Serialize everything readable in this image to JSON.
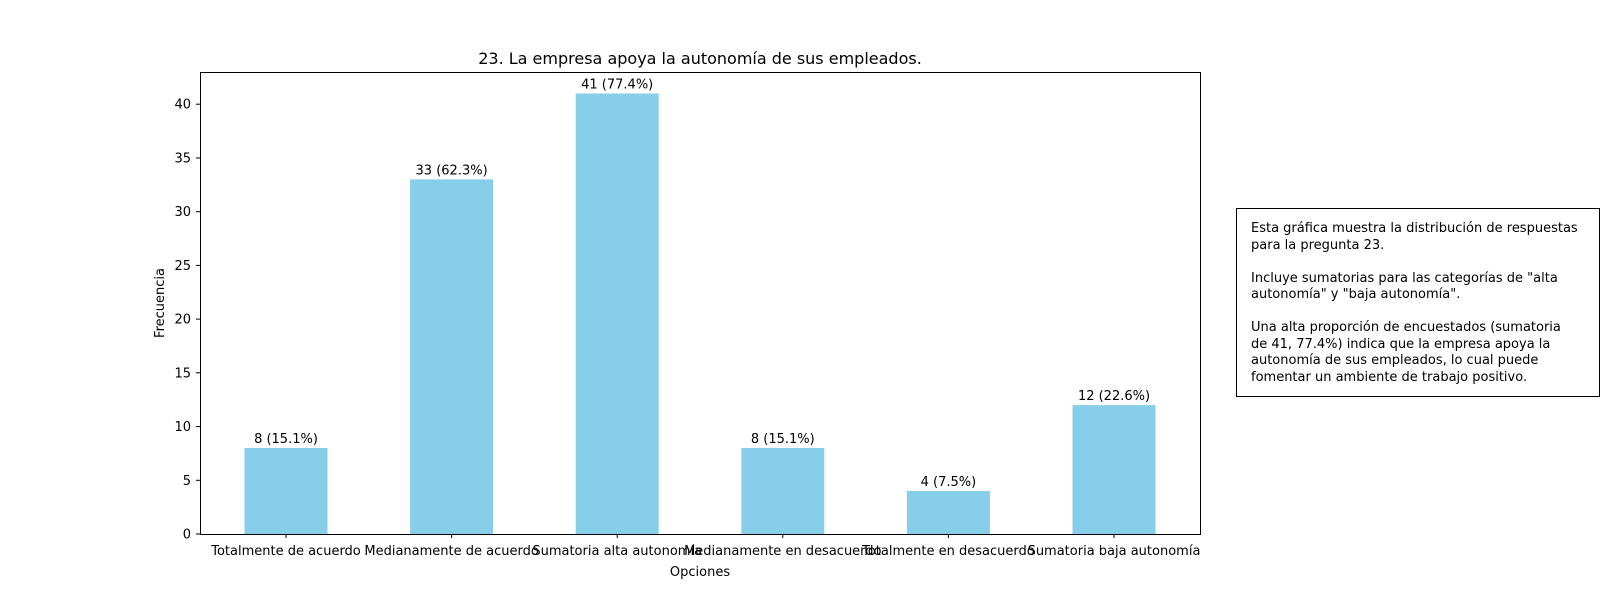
{
  "chart_data": {
    "type": "bar",
    "title": "23. La empresa apoya la autonomía de sus empleados.",
    "xlabel": "Opciones",
    "ylabel": "Frecuencia",
    "categories": [
      "Totalmente de acuerdo",
      "Medianamente de acuerdo",
      "Sumatoria alta autonomía",
      "Medianamente en desacuerdo",
      "Totalmente en desacuerdo",
      "Sumatoria baja autonomía"
    ],
    "values": [
      8,
      33,
      41,
      8,
      4,
      12
    ],
    "data_labels": [
      "8 (15.1%)",
      "33 (62.3%)",
      "41 (77.4%)",
      "8 (15.1%)",
      "4 (7.5%)",
      "12 (22.6%)"
    ],
    "ylim": [
      0,
      43
    ],
    "yticks": [
      0,
      5,
      10,
      15,
      20,
      25,
      30,
      35,
      40
    ],
    "bar_color": "#87ceeb",
    "grid": false,
    "legend": "none"
  },
  "annotation": {
    "lines": [
      "Esta gráfica muestra la distribución de respuestas",
      "para la pregunta 23.",
      "",
      "Incluye sumatorias para las categorías de \"alta",
      "autonomía\" y \"baja autonomía\".",
      "",
      "Una alta proporción de encuestados (sumatoria",
      "de 41, 77.4%) indica que la empresa apoya la",
      "autonomía de sus empleados, lo cual puede",
      "fomentar un ambiente de trabajo positivo."
    ]
  }
}
